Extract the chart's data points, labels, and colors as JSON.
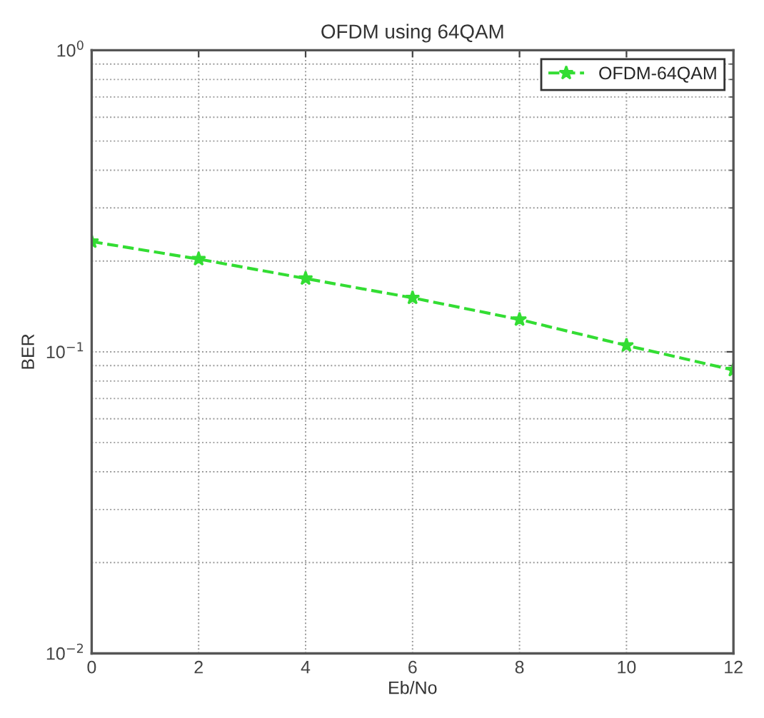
{
  "chart_data": {
    "type": "line",
    "title": "OFDM using 64QAM",
    "xlabel": "Eb/No",
    "ylabel": "BER",
    "x": [
      0,
      2,
      4,
      6,
      8,
      10,
      12
    ],
    "series": [
      {
        "name": "OFDM-64QAM",
        "color": "#33dd33",
        "values": [
          0.232,
          0.203,
          0.175,
          0.151,
          0.128,
          0.105,
          0.087
        ]
      }
    ],
    "log": "y",
    "xlim": [
      0,
      12
    ],
    "xticks": [
      0,
      2,
      4,
      6,
      8,
      10,
      12
    ],
    "ylim": [
      0.01,
      1
    ],
    "yticks": [
      {
        "value": 0.01,
        "label": "10$^{−2}$"
      },
      {
        "value": 0.1,
        "label": "10$^{−1}$"
      },
      {
        "value": 1,
        "label": "10$^{0}$"
      }
    ],
    "grid": true,
    "legend": "top right",
    "marker": "star",
    "line_style": "dashed"
  }
}
